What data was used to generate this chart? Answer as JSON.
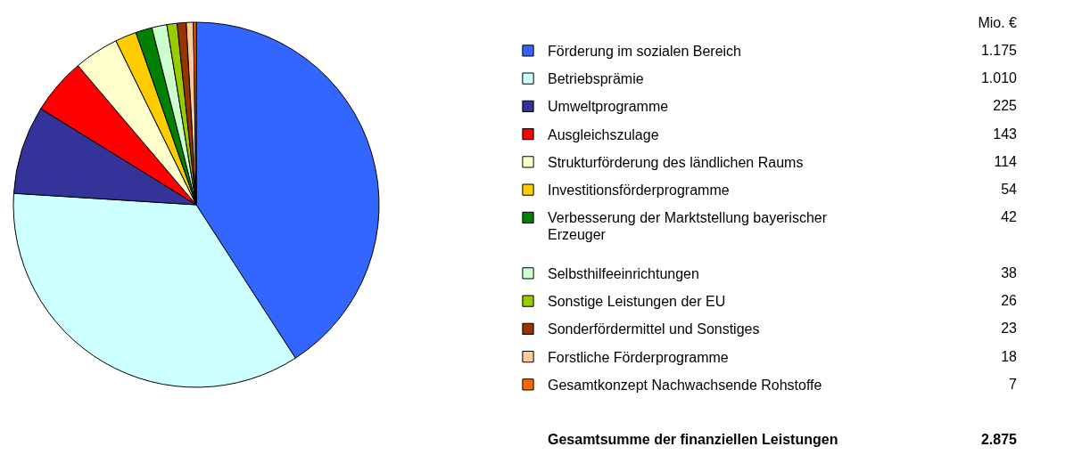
{
  "chart_data": {
    "type": "pie",
    "legend": "right",
    "legend_title": "Mio. €",
    "categories": [
      "Förderung im sozialen Bereich",
      "Betriebsprämie",
      "Umweltprogramme",
      "Ausgleichszulage",
      "Strukturförderung des ländlichen Raums",
      "Investitionsförderprogramme",
      "Verbesserung der Marktstellung bayerischer Erzeuger",
      "Selbsthilfeeinrichtungen",
      "Sonstige Leistungen der EU",
      "Sonderfördermittel und Sonstiges",
      "Forstliche Förderprogramme",
      "Gesamtkonzept Nachwachsende Rohstoffe"
    ],
    "values": [
      1175,
      1010,
      225,
      143,
      114,
      54,
      42,
      38,
      26,
      23,
      18,
      7
    ],
    "value_labels": [
      "1.175",
      "1.010",
      "225",
      "143",
      "114",
      "54",
      "42",
      "38",
      "26",
      "23",
      "18",
      "7"
    ],
    "colors": [
      "#3366ff",
      "#ccffff",
      "#333399",
      "#ff0000",
      "#ffffcc",
      "#ffcc00",
      "#008000",
      "#ccffcc",
      "#99cc00",
      "#993300",
      "#ffcc99",
      "#ff6600"
    ],
    "annotations": [
      "Gesamtsumme der finanziellen Leistungen",
      "2.875"
    ]
  }
}
